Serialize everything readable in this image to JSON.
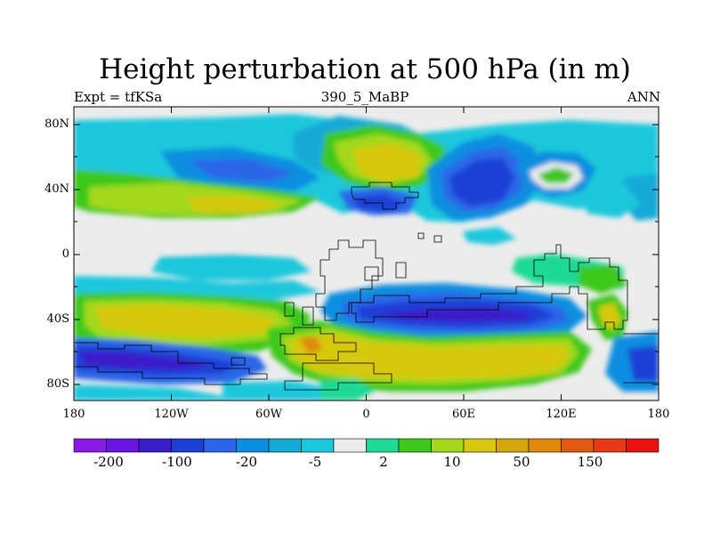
{
  "header": {
    "title": "Height perturbation at 500 hPa (in m)",
    "left_label": "Expt = tfKSa",
    "center_label": "390_5_MaBP",
    "right_label": "ANN"
  },
  "axes": {
    "lat_ticks": [
      "80N",
      "40N",
      "0",
      "40S",
      "80S"
    ],
    "lon_ticks": [
      "180",
      "120W",
      "60W",
      "0",
      "60E",
      "120E",
      "180"
    ]
  },
  "colorbar": {
    "colors": [
      "#8a19e6",
      "#6717e0",
      "#3a1fc8",
      "#1e3fd6",
      "#2a66e8",
      "#0a8ee0",
      "#15a9d8",
      "#1cc7dc",
      "#ececec",
      "#1fd996",
      "#3ec81b",
      "#a3d81a",
      "#d6c80e",
      "#d4a60d",
      "#e08a0d",
      "#e05a12",
      "#e83a14",
      "#e8140f"
    ],
    "labels": [
      "-200",
      "-100",
      "-20",
      "-5",
      "2",
      "10",
      "50",
      "150"
    ]
  }
}
